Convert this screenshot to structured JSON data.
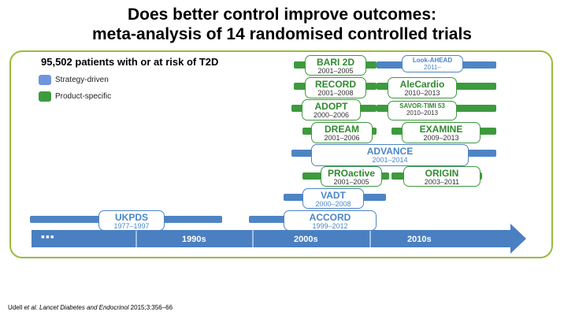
{
  "title_line1": "Does better control improve outcomes:",
  "title_line2": "meta-analysis of 14 randomised controlled trials",
  "subtitle": "95,502 patients with or at risk of T2D",
  "legend": {
    "strategy": {
      "label": "Strategy-driven",
      "color": "#6f95e0"
    },
    "product": {
      "label": "Product-specific",
      "color": "#3d9a3d"
    }
  },
  "colors": {
    "axis": "#4a7fc1",
    "strategy_bar": "#4f84c4",
    "product_bar": "#3d9a3d",
    "frame": "#9bbb3c"
  },
  "axis": {
    "start": "▪▪▪",
    "decades": [
      "1990s",
      "2000s",
      "2010s"
    ]
  },
  "trials": [
    {
      "name": "BARI 2D",
      "years": "2001–2005",
      "type": "product"
    },
    {
      "name": "Look-AHEAD",
      "years": "2011–",
      "type": "strategy"
    },
    {
      "name": "RECORD",
      "years": "2001–2008",
      "type": "product"
    },
    {
      "name": "AleCardio",
      "years": "2010–2013",
      "type": "product"
    },
    {
      "name": "ADOPT",
      "years": "2000–2006",
      "type": "product"
    },
    {
      "name": "SAVOR-TIMI 53",
      "years": "2010–2013",
      "type": "product"
    },
    {
      "name": "DREAM",
      "years": "2001–2006",
      "type": "product"
    },
    {
      "name": "EXAMINE",
      "years": "2009–2013",
      "type": "product"
    },
    {
      "name": "ADVANCE",
      "years": "2001–2014",
      "type": "strategy"
    },
    {
      "name": "PROactive",
      "years": "2001–2005",
      "type": "product"
    },
    {
      "name": "ORIGIN",
      "years": "2003–2011",
      "type": "product"
    },
    {
      "name": "VADT",
      "years": "2000–2008",
      "type": "strategy"
    },
    {
      "name": "UKPDS",
      "years": "1977–1997",
      "type": "strategy"
    },
    {
      "name": "ACCORD",
      "years": "1999–2012",
      "type": "strategy"
    }
  ],
  "citation": {
    "authors": "Udell",
    "etal": " et al. ",
    "journal": "Lancet Diabetes and Endocrinol",
    "ref": " 2015;3:356–66"
  }
}
